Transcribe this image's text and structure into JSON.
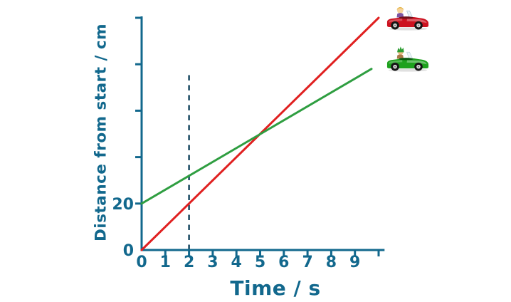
{
  "colors": {
    "background": "#ffffff",
    "axis": "#12688d",
    "axis_text": "#12688d",
    "dashed_guide": "#1f4e66"
  },
  "chart_data": {
    "type": "line",
    "title": "",
    "xlabel": "Time / s",
    "ylabel": "Distance from start / cm",
    "xlim": [
      0,
      10.25
    ],
    "ylim": [
      0,
      100
    ],
    "grid": false,
    "legend": "none - car pictures mark the end of each line",
    "x_ticks": [
      {
        "v": 0,
        "label": "0",
        "tick": false
      },
      {
        "v": 1,
        "label": "1",
        "tick": true
      },
      {
        "v": 2,
        "label": "2",
        "tick": true
      },
      {
        "v": 3,
        "label": "3",
        "tick": true
      },
      {
        "v": 4,
        "label": "4",
        "tick": true
      },
      {
        "v": 5,
        "label": "5",
        "tick": true
      },
      {
        "v": 6,
        "label": "6",
        "tick": true
      },
      {
        "v": 7,
        "label": "7",
        "tick": true
      },
      {
        "v": 8,
        "label": "8",
        "tick": true
      },
      {
        "v": 9,
        "label": "9",
        "tick": true
      },
      {
        "v": 10,
        "label": "",
        "tick": true
      }
    ],
    "y_ticks": [
      {
        "v": 0,
        "label": "0",
        "tick": false
      },
      {
        "v": 20,
        "label": "20",
        "tick": true
      },
      {
        "v": 40,
        "label": "",
        "tick": true
      },
      {
        "v": 60,
        "label": "",
        "tick": true
      },
      {
        "v": 80,
        "label": "",
        "tick": true
      },
      {
        "v": 100,
        "label": "",
        "tick": true
      }
    ],
    "series": [
      {
        "name": "red-car",
        "color": "#e02020",
        "points": [
          [
            0,
            0
          ],
          [
            10,
            100
          ]
        ],
        "description": "red car: starts at 0 cm, constant speed 10 cm/s"
      },
      {
        "name": "green-car",
        "color": "#2f9e41",
        "points": [
          [
            0,
            20
          ],
          [
            9.7,
            78
          ]
        ],
        "description": "green car: starts at 20 cm, constant speed 6 cm/s"
      }
    ],
    "annotations": [
      {
        "type": "dashed-vline",
        "x": 2,
        "from": 0,
        "to": 76,
        "color": "#1f4e66"
      }
    ]
  },
  "icons": {
    "red_car": "red-car-icon",
    "green_car": "green-car-icon"
  }
}
